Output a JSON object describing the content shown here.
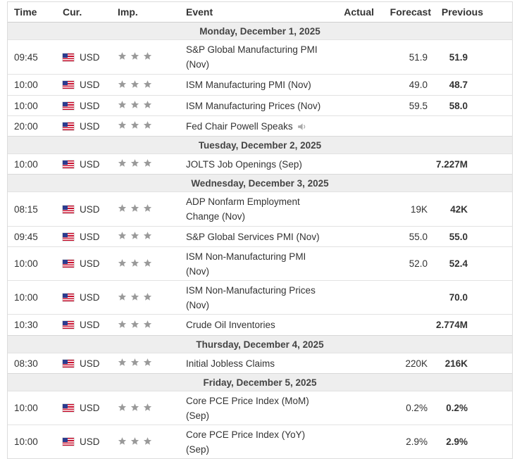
{
  "header": {
    "time": "Time",
    "currency": "Cur.",
    "importance": "Imp.",
    "event": "Event",
    "actual": "Actual",
    "forecast": "Forecast",
    "previous": "Previous"
  },
  "days": [
    {
      "date": "Monday, December 1, 2025",
      "events": [
        {
          "time": "09:45",
          "currency": "USD",
          "event": "S&P Global Manufacturing PMI (Nov)",
          "actual": "",
          "forecast": "51.9",
          "previous": "51.9"
        },
        {
          "time": "10:00",
          "currency": "USD",
          "event": "ISM Manufacturing PMI (Nov)",
          "actual": "",
          "forecast": "49.0",
          "previous": "48.7"
        },
        {
          "time": "10:00",
          "currency": "USD",
          "event": "ISM Manufacturing Prices (Nov)",
          "actual": "",
          "forecast": "59.5",
          "previous": "58.0"
        },
        {
          "time": "20:00",
          "currency": "USD",
          "event": "Fed Chair Powell Speaks",
          "actual": "",
          "forecast": "",
          "previous": "",
          "speech_icon": "speaker-icon"
        }
      ]
    },
    {
      "date": "Tuesday, December 2, 2025",
      "events": [
        {
          "time": "10:00",
          "currency": "USD",
          "event": "JOLTS Job Openings (Sep)",
          "actual": "",
          "forecast": "",
          "previous": "7.227M"
        }
      ]
    },
    {
      "date": "Wednesday, December 3, 2025",
      "events": [
        {
          "time": "08:15",
          "currency": "USD",
          "event": "ADP Nonfarm Employment Change (Nov)",
          "actual": "",
          "forecast": "19K",
          "previous": "42K"
        },
        {
          "time": "09:45",
          "currency": "USD",
          "event": "S&P Global Services PMI (Nov)",
          "actual": "",
          "forecast": "55.0",
          "previous": "55.0"
        },
        {
          "time": "10:00",
          "currency": "USD",
          "event": "ISM Non-Manufacturing PMI (Nov)",
          "actual": "",
          "forecast": "52.0",
          "previous": "52.4"
        },
        {
          "time": "10:00",
          "currency": "USD",
          "event": "ISM Non-Manufacturing Prices (Nov)",
          "actual": "",
          "forecast": "",
          "previous": "70.0"
        },
        {
          "time": "10:30",
          "currency": "USD",
          "event": "Crude Oil Inventories",
          "actual": "",
          "forecast": "",
          "previous": "2.774M"
        }
      ]
    },
    {
      "date": "Thursday, December 4, 2025",
      "events": [
        {
          "time": "08:30",
          "currency": "USD",
          "event": "Initial Jobless Claims",
          "actual": "",
          "forecast": "220K",
          "previous": "216K"
        }
      ]
    },
    {
      "date": "Friday, December 5, 2025",
      "events": [
        {
          "time": "10:00",
          "currency": "USD",
          "event": "Core PCE Price Index (MoM) (Sep)",
          "actual": "",
          "forecast": "0.2%",
          "previous": "0.2%"
        },
        {
          "time": "10:00",
          "currency": "USD",
          "event": "Core PCE Price Index (YoY) (Sep)",
          "actual": "",
          "forecast": "2.9%",
          "previous": "2.9%"
        }
      ]
    }
  ],
  "colors": {
    "star": "#9a9a9a",
    "date_bg": "#eeeeee",
    "border": "#e2e2e2"
  },
  "icons": {
    "flag": "us-flag-icon",
    "importance": "star-icon",
    "speech": "speaker-icon"
  }
}
